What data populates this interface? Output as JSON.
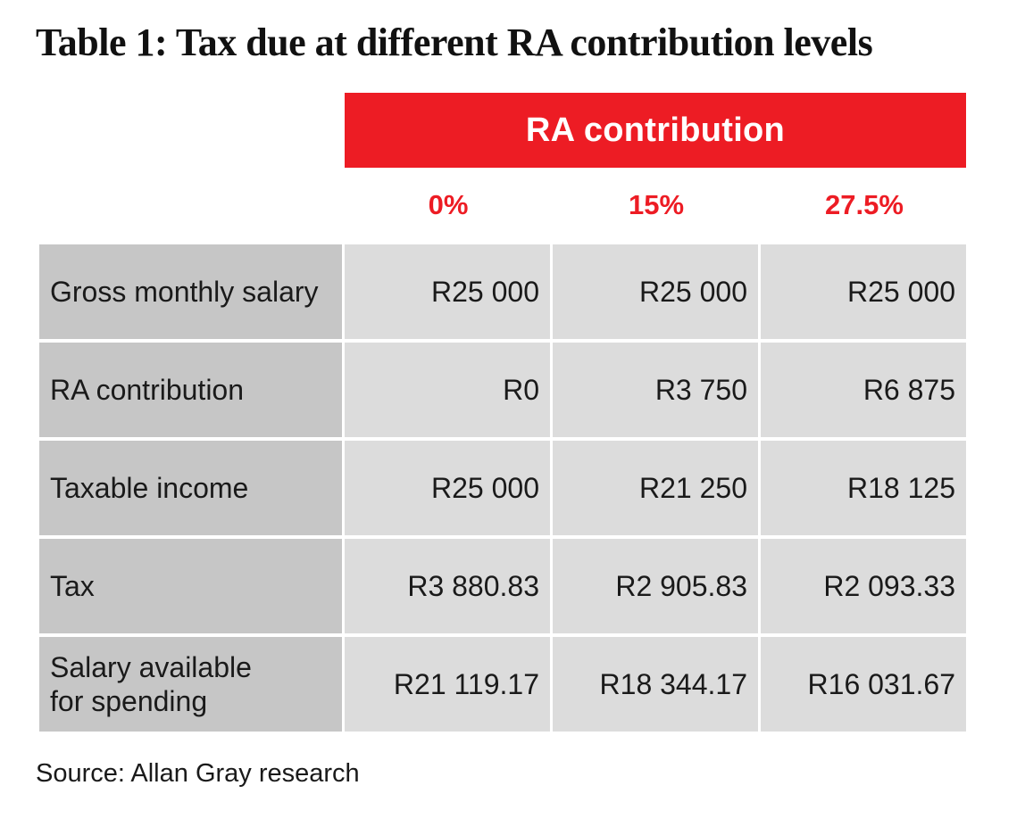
{
  "title": "Table 1: Tax due at different RA contribution levels",
  "header": {
    "group_label": "RA contribution",
    "columns": [
      "0%",
      "15%",
      "27.5%"
    ]
  },
  "rows": [
    {
      "label": "Gross monthly salary",
      "values": [
        "R25 000",
        "R25 000",
        "R25 000"
      ]
    },
    {
      "label": "RA contribution",
      "values": [
        "R0",
        "R3 750",
        "R6 875"
      ]
    },
    {
      "label": "Taxable income",
      "values": [
        "R25 000",
        "R21 250",
        "R18 125"
      ]
    },
    {
      "label": "Tax",
      "values": [
        "R3 880.83",
        "R2 905.83",
        "R2 093.33"
      ]
    },
    {
      "label": "Salary available for spending",
      "values": [
        "R21 119.17",
        "R18 344.17",
        "R16 031.67"
      ]
    }
  ],
  "source": "Source: Allan Gray research",
  "colors": {
    "accent": "#ed1c24",
    "label_cell": "#c6c6c6",
    "value_cell": "#dcdcdc"
  }
}
